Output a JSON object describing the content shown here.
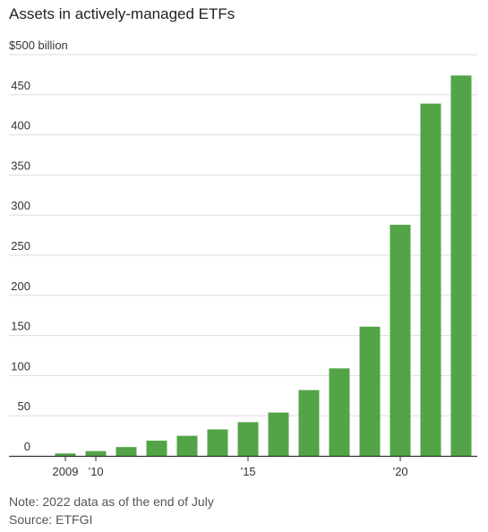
{
  "chart_data": {
    "type": "bar",
    "title": "Assets in actively-managed ETFs",
    "unit_label": "$500 billion",
    "categories": [
      "2009",
      "2010",
      "2011",
      "2012",
      "2013",
      "2014",
      "2015",
      "2016",
      "2017",
      "2018",
      "2019",
      "2020",
      "2021",
      "2022"
    ],
    "values": [
      3,
      6,
      11,
      19,
      25,
      33,
      42,
      54,
      82,
      109,
      161,
      288,
      439,
      474
    ],
    "y_ticks": [
      {
        "value": 450,
        "label": "450"
      },
      {
        "value": 400,
        "label": "400"
      },
      {
        "value": 350,
        "label": "350"
      },
      {
        "value": 300,
        "label": "300"
      },
      {
        "value": 250,
        "label": "250"
      },
      {
        "value": 200,
        "label": "200"
      },
      {
        "value": 150,
        "label": "150"
      },
      {
        "value": 100,
        "label": "100"
      },
      {
        "value": 50,
        "label": "50"
      },
      {
        "value": 0,
        "label": "0"
      }
    ],
    "x_ticks": [
      {
        "index": 0,
        "label": "2009"
      },
      {
        "index": 1,
        "label": "’10"
      },
      {
        "index": 6,
        "label": "’15"
      },
      {
        "index": 11,
        "label": "’20"
      }
    ],
    "ylim": [
      0,
      500
    ],
    "grid": true,
    "colors": {
      "bar": "#52a447",
      "grid": "#dddddd",
      "axis": "#333333"
    }
  },
  "footer": {
    "note": "Note: 2022 data as of the end of July",
    "source": "Source: ETFGI"
  }
}
